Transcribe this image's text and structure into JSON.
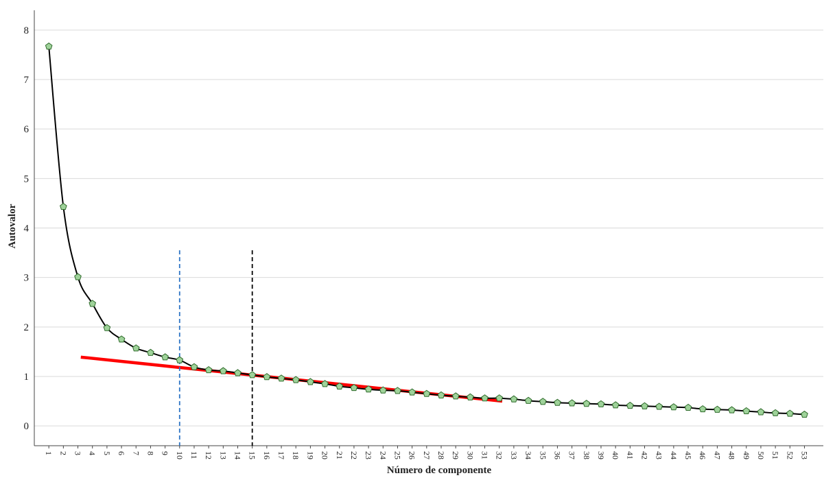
{
  "chart_data": {
    "type": "line",
    "title": "",
    "xlabel": "Número de componente",
    "ylabel": "Autovalor",
    "x": [
      1,
      2,
      3,
      4,
      5,
      6,
      7,
      8,
      9,
      10,
      11,
      12,
      13,
      14,
      15,
      16,
      17,
      18,
      19,
      20,
      21,
      22,
      23,
      24,
      25,
      26,
      27,
      28,
      29,
      30,
      31,
      32,
      33,
      34,
      35,
      36,
      37,
      38,
      39,
      40,
      41,
      42,
      43,
      44,
      45,
      46,
      47,
      48,
      49,
      50,
      51,
      52,
      53
    ],
    "x_tick_labels": [
      "1",
      "2",
      "3",
      "4",
      "5",
      "6",
      "7",
      "8",
      "9",
      "10",
      "11",
      "12",
      "13",
      "14",
      "15",
      "16",
      "17",
      "18",
      "19",
      "20",
      "21",
      "22",
      "23",
      "24",
      "25",
      "26",
      "27",
      "28",
      "29",
      "30",
      "31",
      "32",
      "33",
      "34",
      "35",
      "36",
      "37",
      "38",
      "39",
      "40",
      "41",
      "42",
      "43",
      "44",
      "45",
      "46",
      "47",
      "48",
      "49",
      "50",
      "51",
      "52",
      "53"
    ],
    "y_ticks": [
      0,
      1,
      2,
      3,
      4,
      5,
      6,
      7,
      8
    ],
    "y_tick_labels": [
      "0",
      "1",
      "2",
      "3",
      "4",
      "5",
      "6",
      "7",
      "8"
    ],
    "ylim": [
      -0.4,
      8.4
    ],
    "xlim": [
      0,
      54.3
    ],
    "grid": "horizontal",
    "series": [
      {
        "values": [
          7.67,
          4.43,
          3.01,
          2.47,
          1.98,
          1.75,
          1.57,
          1.48,
          1.39,
          1.33,
          1.19,
          1.13,
          1.11,
          1.07,
          1.03,
          0.99,
          0.96,
          0.93,
          0.89,
          0.85,
          0.8,
          0.77,
          0.74,
          0.72,
          0.71,
          0.68,
          0.65,
          0.62,
          0.6,
          0.58,
          0.56,
          0.56,
          0.54,
          0.51,
          0.49,
          0.47,
          0.46,
          0.45,
          0.44,
          0.42,
          0.41,
          0.4,
          0.39,
          0.38,
          0.37,
          0.34,
          0.33,
          0.32,
          0.3,
          0.28,
          0.26,
          0.25,
          0.23
        ],
        "line_color": "#000000",
        "marker": "pentagon",
        "marker_color": "#9fd29a",
        "marker_edge": "#2f6b2b"
      }
    ],
    "annotations": [
      {
        "kind": "trend-line",
        "color": "#ff0000",
        "x": [
          3.2,
          32.2
        ],
        "y": [
          1.39,
          0.5
        ]
      },
      {
        "kind": "vertical-dashed-line",
        "color": "#2e75c5",
        "x": 10,
        "y": [
          -0.4,
          3.55
        ]
      },
      {
        "kind": "vertical-dashed-line",
        "color": "#000000",
        "x": 15,
        "y": [
          -0.4,
          3.55
        ]
      }
    ]
  }
}
